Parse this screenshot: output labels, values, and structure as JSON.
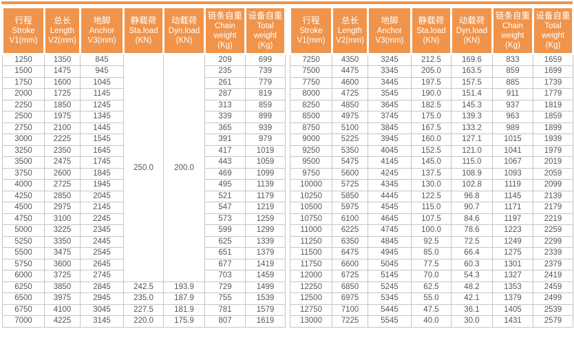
{
  "colors": {
    "accent": "#F0944B",
    "body_border": "#C5C5C5",
    "body_text": "#555658",
    "header_text": "#FFFFFF"
  },
  "columns": [
    {
      "key": "stroke",
      "lines": [
        "行程",
        "Stroke",
        "V1(mm)"
      ]
    },
    {
      "key": "length",
      "lines": [
        "总长",
        "Length",
        "V2(mm)"
      ]
    },
    {
      "key": "anchor",
      "lines": [
        "地脚",
        "Anchor",
        "V3(mm)"
      ]
    },
    {
      "key": "sta-load",
      "lines": [
        "静载荷",
        "Sta.load",
        "(KN)"
      ]
    },
    {
      "key": "dyn-load",
      "lines": [
        "动载荷",
        "Dyn.load",
        "(KN)"
      ]
    },
    {
      "key": "chain-weight",
      "lines": [
        "链条自重",
        "Chain",
        "weight",
        "(Kg)"
      ]
    },
    {
      "key": "total-weight",
      "lines": [
        "设备自重",
        "Total",
        "weight",
        "(Kg)"
      ]
    }
  ],
  "left_table": {
    "merged": {
      "sta_load": "250.0",
      "dyn_load": "200.0",
      "rowspan": 20
    },
    "rows": [
      [
        "1250",
        "1350",
        "845",
        null,
        null,
        "209",
        "699"
      ],
      [
        "1500",
        "1475",
        "945",
        null,
        null,
        "235",
        "739"
      ],
      [
        "1750",
        "1600",
        "1045",
        null,
        null,
        "261",
        "779"
      ],
      [
        "2000",
        "1725",
        "1145",
        null,
        null,
        "287",
        "819"
      ],
      [
        "2250",
        "1850",
        "1245",
        null,
        null,
        "313",
        "859"
      ],
      [
        "2500",
        "1975",
        "1345",
        null,
        null,
        "339",
        "899"
      ],
      [
        "2750",
        "2100",
        "1445",
        null,
        null,
        "365",
        "939"
      ],
      [
        "3000",
        "2225",
        "1545",
        null,
        null,
        "391",
        "979"
      ],
      [
        "3250",
        "2350",
        "1645",
        null,
        null,
        "417",
        "1019"
      ],
      [
        "3500",
        "2475",
        "1745",
        null,
        null,
        "443",
        "1059"
      ],
      [
        "3750",
        "2600",
        "1845",
        null,
        null,
        "469",
        "1099"
      ],
      [
        "4000",
        "2725",
        "1945",
        null,
        null,
        "495",
        "1139"
      ],
      [
        "4250",
        "2850",
        "2045",
        null,
        null,
        "521",
        "1179"
      ],
      [
        "4500",
        "2975",
        "2145",
        null,
        null,
        "547",
        "1219"
      ],
      [
        "4750",
        "3100",
        "2245",
        null,
        null,
        "573",
        "1259"
      ],
      [
        "5000",
        "3225",
        "2345",
        null,
        null,
        "599",
        "1299"
      ],
      [
        "5250",
        "3350",
        "2445",
        null,
        null,
        "625",
        "1339"
      ],
      [
        "5500",
        "3475",
        "2545",
        null,
        null,
        "651",
        "1379"
      ],
      [
        "5750",
        "3600",
        "2645",
        null,
        null,
        "677",
        "1419"
      ],
      [
        "6000",
        "3725",
        "2745",
        null,
        null,
        "703",
        "1459"
      ],
      [
        "6250",
        "3850",
        "2845",
        "242.5",
        "193.9",
        "729",
        "1499"
      ],
      [
        "6500",
        "3975",
        "2945",
        "235.0",
        "187.9",
        "755",
        "1539"
      ],
      [
        "6750",
        "4100",
        "3045",
        "227.5",
        "181.9",
        "781",
        "1579"
      ],
      [
        "7000",
        "4225",
        "3145",
        "220.0",
        "175.9",
        "807",
        "1619"
      ]
    ]
  },
  "right_table": {
    "rows": [
      [
        "7250",
        "4350",
        "3245",
        "212.5",
        "169.6",
        "833",
        "1659"
      ],
      [
        "7500",
        "4475",
        "3345",
        "205.0",
        "163.5",
        "859",
        "1699"
      ],
      [
        "7750",
        "4600",
        "3445",
        "197.5",
        "157.5",
        "885",
        "1739"
      ],
      [
        "8000",
        "4725",
        "3545",
        "190.0",
        "151.4",
        "911",
        "1779"
      ],
      [
        "8250",
        "4850",
        "3645",
        "182.5",
        "145.3",
        "937",
        "1819"
      ],
      [
        "8500",
        "4975",
        "3745",
        "175.0",
        "139.3",
        "963",
        "1859"
      ],
      [
        "8750",
        "5100",
        "3845",
        "167.5",
        "133.2",
        "989",
        "1899"
      ],
      [
        "9000",
        "5225",
        "3945",
        "160.0",
        "127.1",
        "1015",
        "1939"
      ],
      [
        "9250",
        "5350",
        "4045",
        "152.5",
        "121.0",
        "1041",
        "1979"
      ],
      [
        "9500",
        "5475",
        "4145",
        "145.0",
        "115.0",
        "1067",
        "2019"
      ],
      [
        "9750",
        "5600",
        "4245",
        "137.5",
        "108.9",
        "1093",
        "2059"
      ],
      [
        "10000",
        "5725",
        "4345",
        "130.0",
        "102.8",
        "1119",
        "2099"
      ],
      [
        "10250",
        "5850",
        "4445",
        "122.5",
        "96.8",
        "1145",
        "2139"
      ],
      [
        "10500",
        "5975",
        "4545",
        "115.0",
        "90.7",
        "1171",
        "2179"
      ],
      [
        "10750",
        "6100",
        "4645",
        "107.5",
        "84.6",
        "1197",
        "2219"
      ],
      [
        "11000",
        "6225",
        "4745",
        "100.0",
        "78.6",
        "1223",
        "2259"
      ],
      [
        "11250",
        "6350",
        "4845",
        "92.5",
        "72.5",
        "1249",
        "2299"
      ],
      [
        "11500",
        "6475",
        "4945",
        "85.0",
        "66.4",
        "1275",
        "2339"
      ],
      [
        "11750",
        "6600",
        "5045",
        "77.5",
        "60.3",
        "1301",
        "2379"
      ],
      [
        "12000",
        "6725",
        "5145",
        "70.0",
        "54.3",
        "1327",
        "2419"
      ],
      [
        "12250",
        "6850",
        "5245",
        "62.5",
        "48.2",
        "1353",
        "2459"
      ],
      [
        "12500",
        "6975",
        "5345",
        "55.0",
        "42.1",
        "1379",
        "2499"
      ],
      [
        "12750",
        "7100",
        "5445",
        "47.5",
        "36.1",
        "1405",
        "2539"
      ],
      [
        "13000",
        "7225",
        "5545",
        "40.0",
        "30.0",
        "1431",
        "2579"
      ]
    ]
  }
}
